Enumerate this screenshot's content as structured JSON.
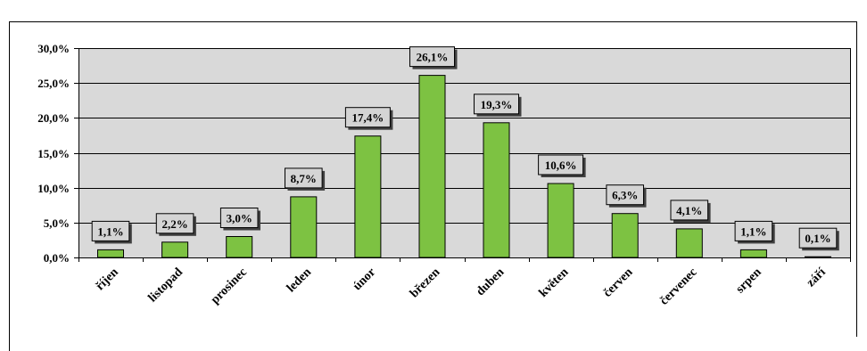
{
  "chart_data": {
    "type": "bar",
    "categories": [
      "říjen",
      "listopad",
      "prosinec",
      "leden",
      "únor",
      "březen",
      "duben",
      "květen",
      "červen",
      "červenec",
      "srpen",
      "září"
    ],
    "values": [
      1.1,
      2.2,
      3.0,
      8.7,
      17.4,
      26.1,
      19.3,
      10.6,
      6.3,
      4.1,
      1.1,
      0.1
    ],
    "value_labels": [
      "1,1%",
      "2,2%",
      "3,0%",
      "8,7%",
      "17,4%",
      "26,1%",
      "19,3%",
      "10,6%",
      "6,3%",
      "4,1%",
      "1,1%",
      "0,1%"
    ],
    "ylim": [
      0,
      30
    ],
    "yticks": [
      0,
      5,
      10,
      15,
      20,
      25,
      30
    ],
    "ytick_labels": [
      "0,0%",
      "5,0%",
      "10,0%",
      "15,0%",
      "20,0%",
      "25,0%",
      "30,0%"
    ],
    "grid": true,
    "legend": "none",
    "colors": {
      "bar": "#7dc242",
      "plot_background": "#d9d9d9",
      "label_box": "#d4d4d4",
      "label_shadow": "#404040"
    }
  }
}
